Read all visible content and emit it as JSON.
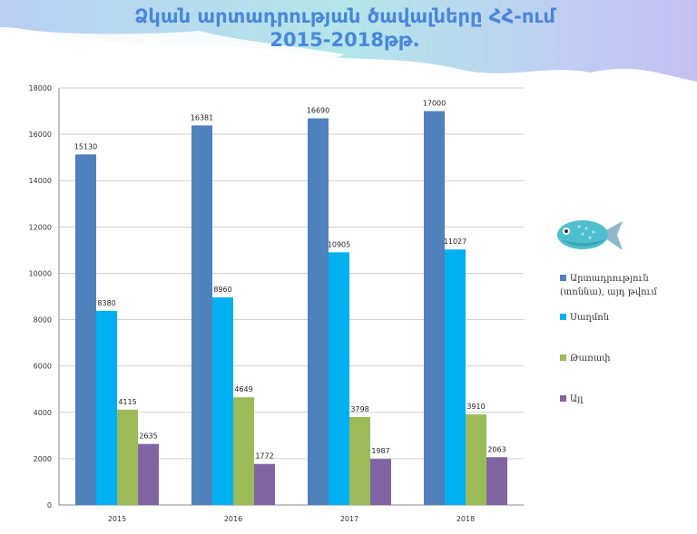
{
  "title_line1": "Ձկան արտադրության ծավալները ՀՀ-ում",
  "title_line2": "2015-2018թթ.",
  "chart_data": {
    "type": "bar",
    "categories": [
      "2015",
      "2016",
      "2017",
      "2018"
    ],
    "series": [
      {
        "name": "Արտադրություն (տոննա), այդ թվում",
        "color": "#4f81bd",
        "values": [
          15130,
          16381,
          16690,
          17000
        ]
      },
      {
        "name": "Սաղմոն",
        "color": "#00b0f0",
        "values": [
          8380,
          8960,
          10905,
          11027
        ]
      },
      {
        "name": "Թառափ",
        "color": "#9bbb59",
        "values": [
          4115,
          4649,
          3798,
          3910
        ]
      },
      {
        "name": "Այլ",
        "color": "#8064a2",
        "values": [
          2635,
          1772,
          1987,
          2063
        ]
      }
    ],
    "yticks": [
      0,
      2000,
      4000,
      6000,
      8000,
      10000,
      12000,
      14000,
      16000,
      18000
    ],
    "ylim": [
      0,
      18000
    ],
    "grid": true,
    "legend": "right"
  }
}
